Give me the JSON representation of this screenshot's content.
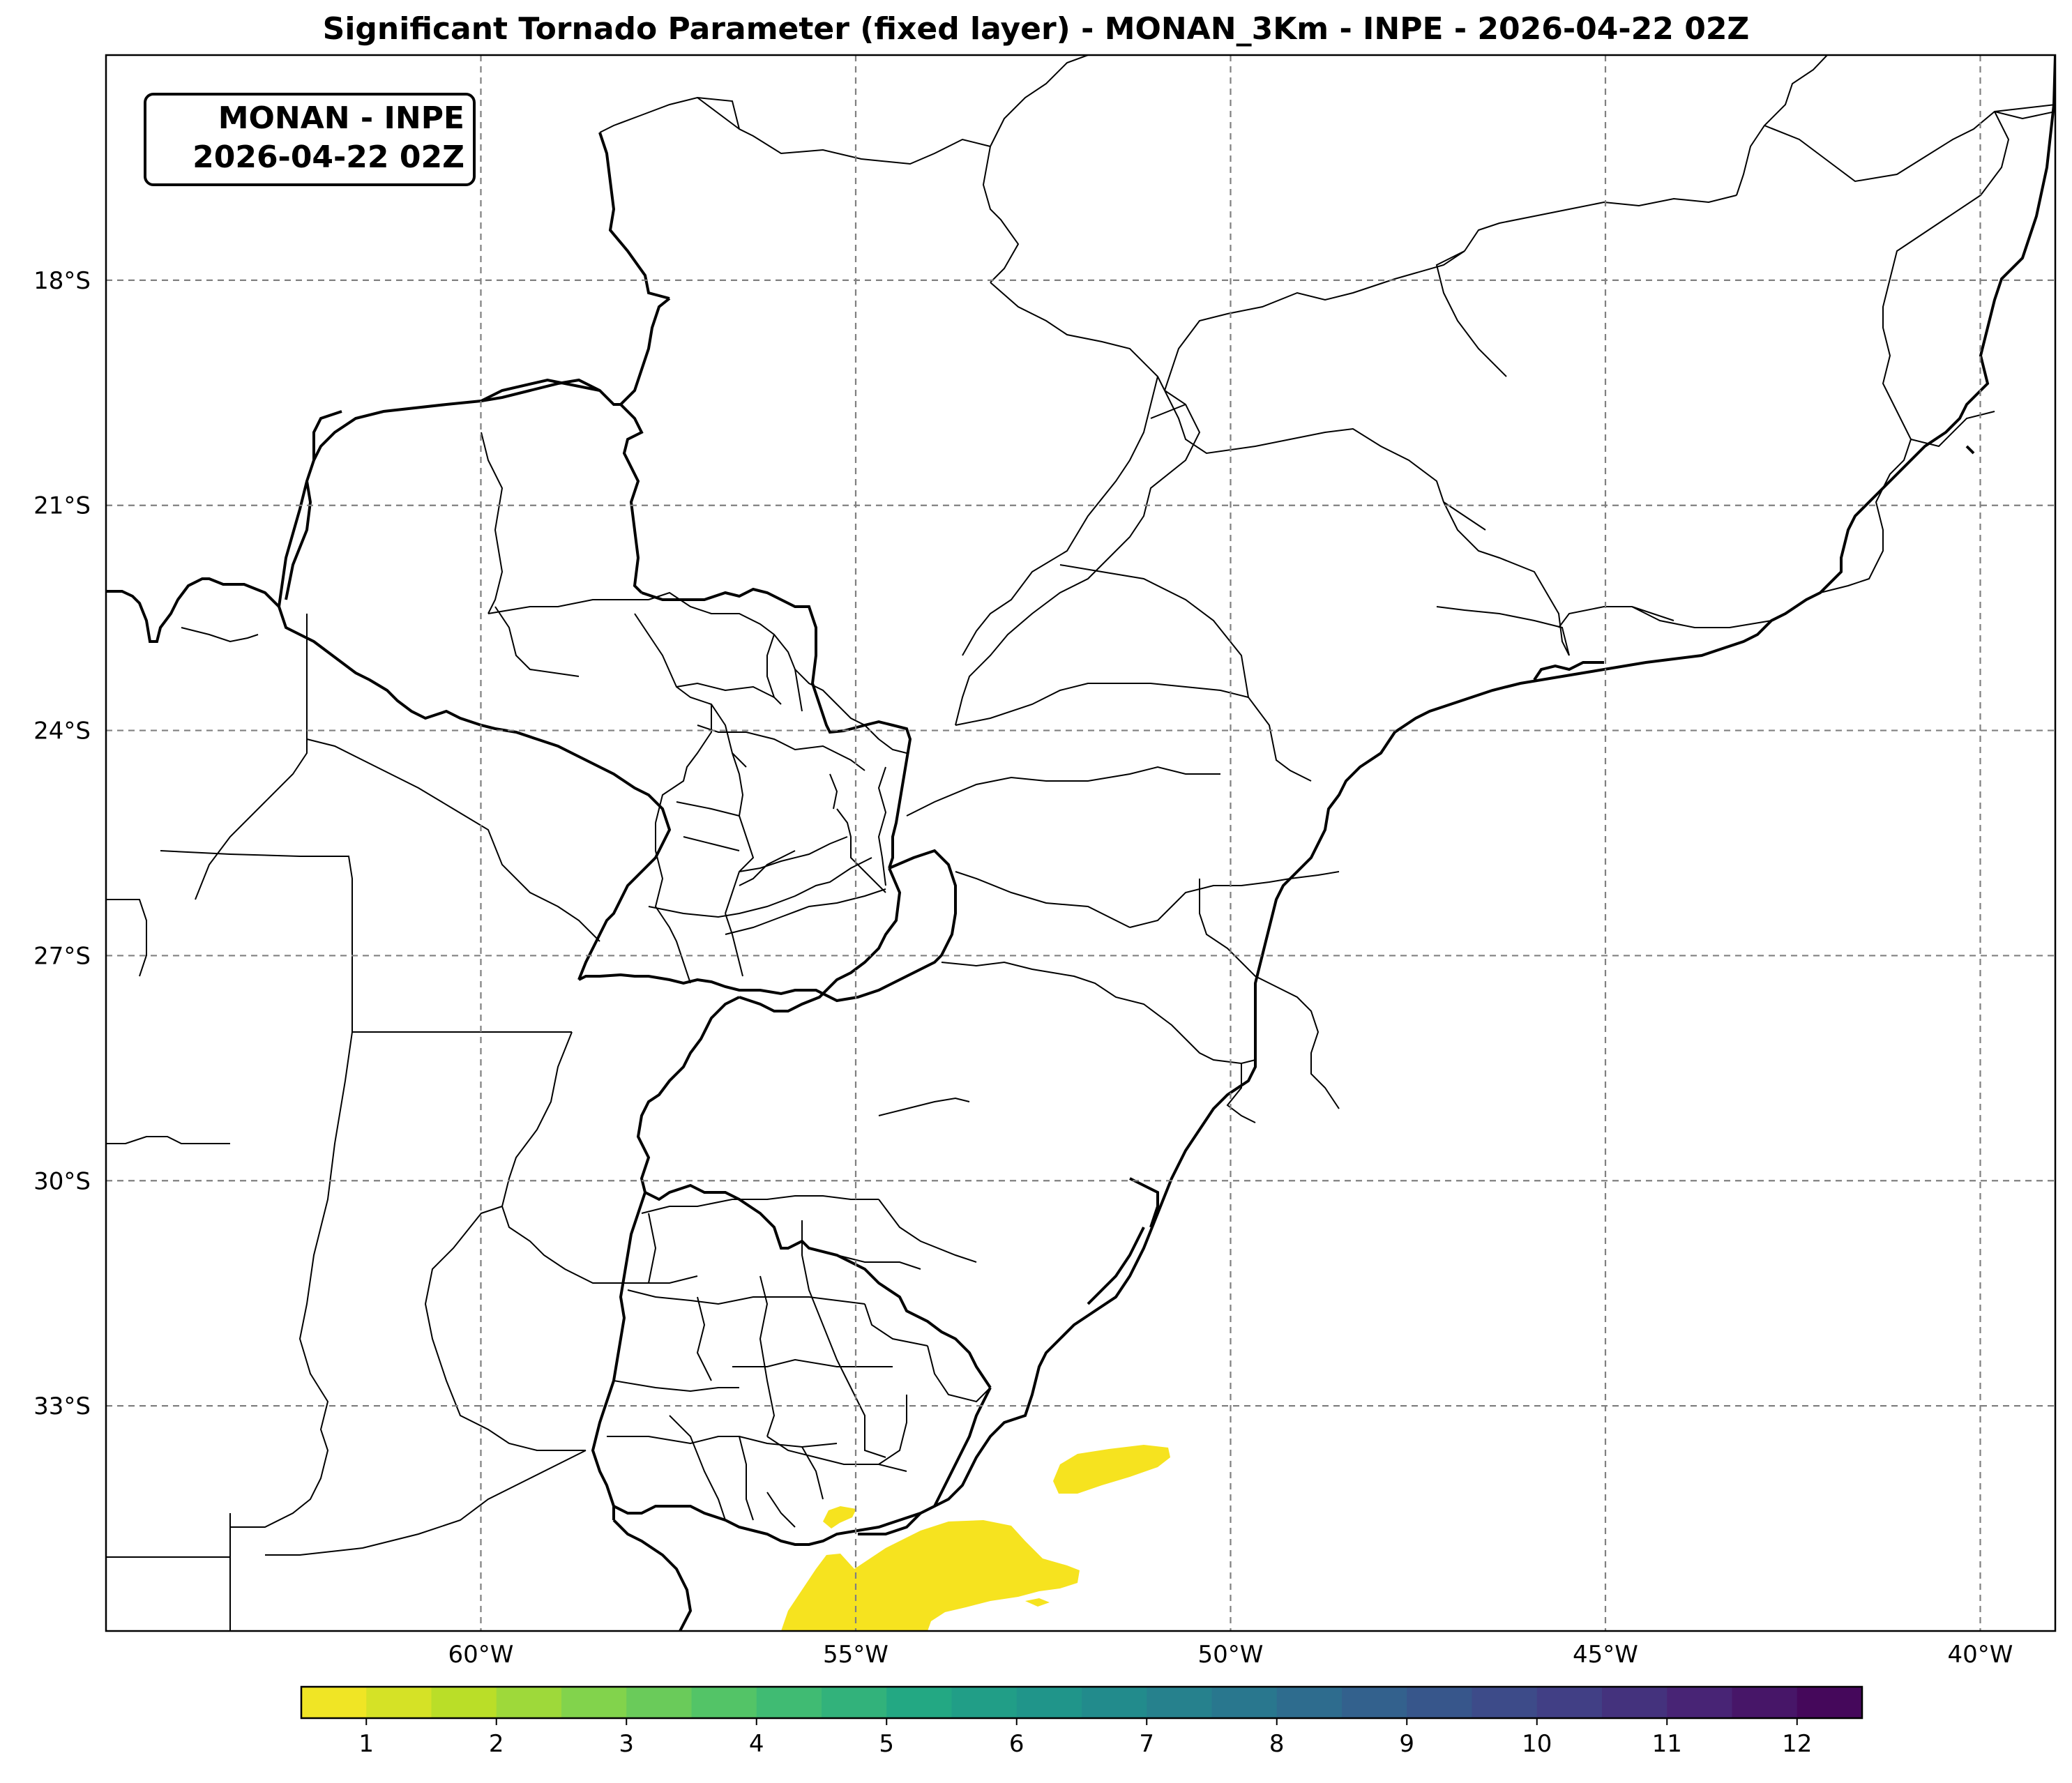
{
  "title": "Significant Tornado Parameter (fixed layer) - MONAN_3Km - INPE - 2026-04-22 02Z",
  "infobox": {
    "line1": "MONAN - INPE",
    "line2": "2026-04-22 02Z"
  },
  "map": {
    "projection": "PlateCarree",
    "extent": {
      "lon_min": -65,
      "lon_max": -39,
      "lat_min": -36,
      "lat_max": -15
    },
    "gridlines": {
      "style": "dashed",
      "color": "#808080"
    },
    "lat_ticks": [
      {
        "value": -18,
        "label": "18°S"
      },
      {
        "value": -21,
        "label": "21°S"
      },
      {
        "value": -24,
        "label": "24°S"
      },
      {
        "value": -27,
        "label": "27°S"
      },
      {
        "value": -30,
        "label": "30°S"
      },
      {
        "value": -33,
        "label": "33°S"
      }
    ],
    "lon_ticks": [
      {
        "value": -60,
        "label": "60°W"
      },
      {
        "value": -55,
        "label": "55°W"
      },
      {
        "value": -50,
        "label": "50°W"
      },
      {
        "value": -45,
        "label": "45°W"
      },
      {
        "value": -40,
        "label": "40°W"
      }
    ],
    "field_color": "#f6e31f",
    "field_value_approx": 0.7
  },
  "colorbar": {
    "colormap": "viridis_r",
    "min": 0.5,
    "max": 12.5,
    "levels": 24,
    "ticks": [
      "1",
      "2",
      "3",
      "4",
      "5",
      "6",
      "7",
      "8",
      "9",
      "10",
      "11",
      "12"
    ]
  }
}
